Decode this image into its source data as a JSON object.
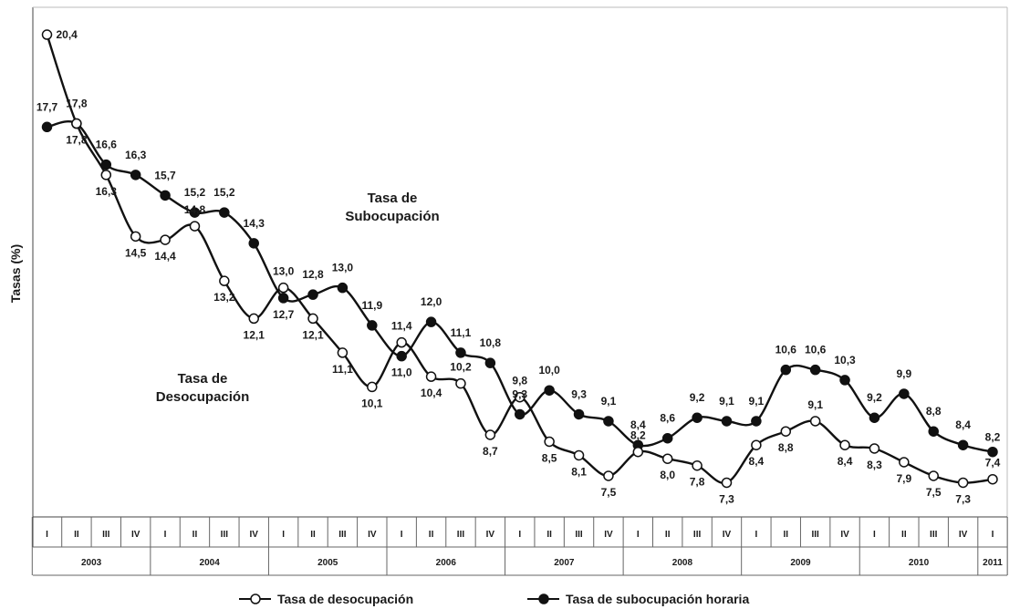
{
  "chart_data": {
    "type": "line",
    "ylabel": "Tasas (%)",
    "ylim": [
      6.3,
      21.2
    ],
    "grid": false,
    "legend_position": "bottom",
    "quarters": [
      "I",
      "II",
      "III",
      "IV",
      "I",
      "II",
      "III",
      "IV",
      "I",
      "II",
      "III",
      "IV",
      "I",
      "II",
      "III",
      "IV",
      "I",
      "II",
      "III",
      "IV",
      "I",
      "II",
      "III",
      "IV",
      "I",
      "II",
      "III",
      "IV",
      "I",
      "II",
      "III",
      "IV",
      "I"
    ],
    "years": [
      {
        "label": "2003",
        "count": 4
      },
      {
        "label": "2004",
        "count": 4
      },
      {
        "label": "2005",
        "count": 4
      },
      {
        "label": "2006",
        "count": 4
      },
      {
        "label": "2007",
        "count": 4
      },
      {
        "label": "2008",
        "count": 4
      },
      {
        "label": "2009",
        "count": 4
      },
      {
        "label": "2010",
        "count": 4
      },
      {
        "label": "2011",
        "count": 1
      }
    ],
    "series": [
      {
        "name": "Tasa de desocupación",
        "marker": "open",
        "values": [
          20.4,
          17.8,
          16.3,
          14.5,
          14.4,
          14.8,
          13.2,
          12.1,
          13.0,
          12.1,
          11.1,
          10.1,
          11.4,
          10.4,
          10.2,
          8.7,
          9.8,
          8.5,
          8.1,
          7.5,
          8.2,
          8.0,
          7.8,
          7.3,
          8.4,
          8.8,
          9.1,
          8.4,
          8.3,
          7.9,
          7.5,
          7.3,
          7.4
        ],
        "labels": [
          "20,4",
          "17,8",
          "16,3",
          "14,5",
          "14,4",
          "14,8",
          "13,2",
          "12,1",
          "13,0",
          "12,1",
          "11,1",
          "10,1",
          "11,4",
          "10,4",
          "10,2",
          "8,7",
          "9,8",
          "8,5",
          "8,1",
          "7,5",
          "8,2",
          "8,0",
          "7,8",
          "7,3",
          "8,4",
          "8,8",
          "9,1",
          "8,4",
          "8,3",
          "7,9",
          "7,5",
          "7,3",
          "7,4"
        ]
      },
      {
        "name": "Tasa de subocupación horaria",
        "marker": "filled",
        "values": [
          17.7,
          17.8,
          16.6,
          16.3,
          15.7,
          15.2,
          15.2,
          14.3,
          12.7,
          12.8,
          13.0,
          11.9,
          11.0,
          12.0,
          11.1,
          10.8,
          9.3,
          10.0,
          9.3,
          9.1,
          8.4,
          8.6,
          9.2,
          9.1,
          9.1,
          10.6,
          10.6,
          10.3,
          9.2,
          9.9,
          8.8,
          8.4,
          8.2
        ],
        "labels": [
          "17,7",
          "17,8",
          "16,6",
          "16,3",
          "15,7",
          "15,2",
          "15,2",
          "14,3",
          "12,7",
          "12,8",
          "13,0",
          "11,9",
          "11,0",
          "12,0",
          "11,1",
          "10,8",
          "9,3",
          "10,0",
          "9,3",
          "9,1",
          "8,4",
          "8,6",
          "9,2",
          "9,1",
          "9,1",
          "10,6",
          "10,6",
          "10,3",
          "9,2",
          "9,9",
          "8,8",
          "8,4",
          "8,2"
        ]
      }
    ],
    "annotations": [
      {
        "text_lines": [
          "Tasa de",
          "Subocupación"
        ],
        "near": "subocupación series"
      },
      {
        "text_lines": [
          "Tasa de",
          "Desocupación"
        ],
        "near": "desocupación series"
      }
    ]
  },
  "legend": {
    "desocupacion": "Tasa de desocupación",
    "subocupacion": "Tasa de subocupación horaria"
  }
}
